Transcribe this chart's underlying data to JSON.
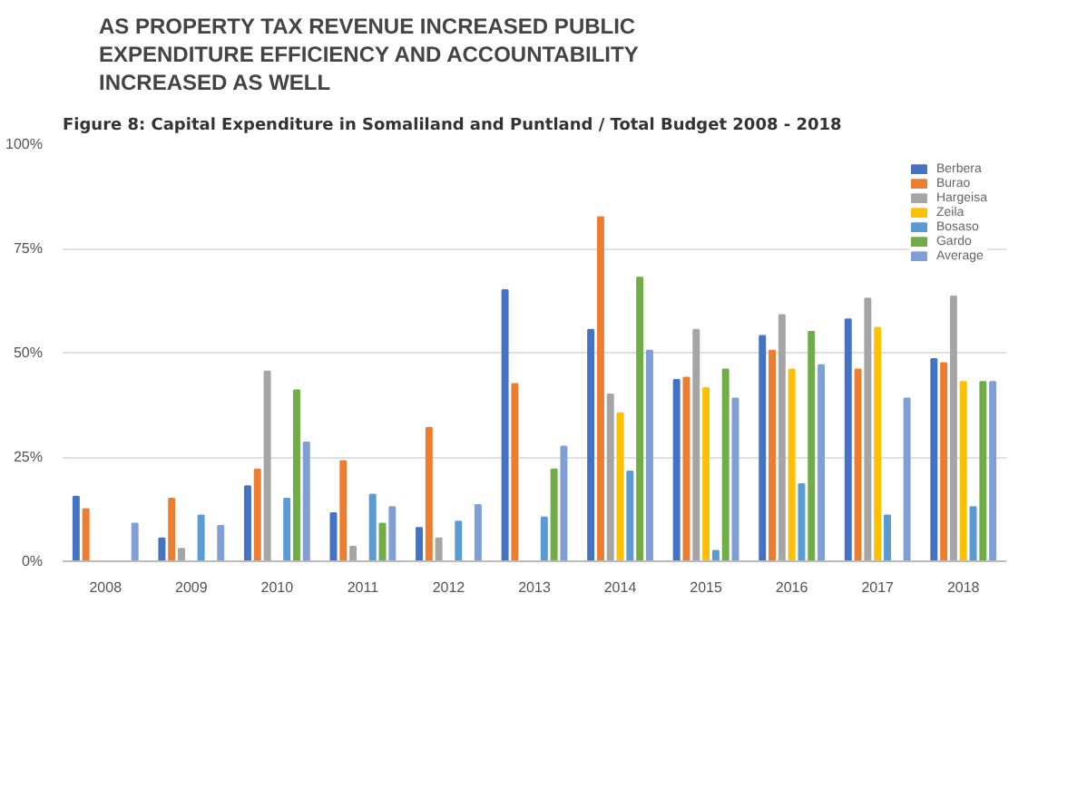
{
  "chart_data": {
    "type": "bar",
    "title": "AS PROPERTY TAX REVENUE INCREASED PUBLIC\nEXPENDITURE EFFICIENCY AND ACCOUNTABILITY\nINCREASED AS WELL",
    "subtitle": "Figure 8: Capital Expenditure in Somaliland and Puntland / Total Budget 2008 - 2018",
    "categories": [
      "2008",
      "2009",
      "2010",
      "2011",
      "2012",
      "2013",
      "2014",
      "2015",
      "2016",
      "2017",
      "2018"
    ],
    "series": [
      {
        "name": "Berbera",
        "color": "#4472c4",
        "values": [
          15.5,
          5.5,
          18,
          11.5,
          8,
          65,
          55.5,
          43.5,
          54,
          58,
          48.5
        ]
      },
      {
        "name": "Burao",
        "color": "#ed7d31",
        "values": [
          12.5,
          15,
          22,
          24,
          32,
          42.5,
          82.5,
          44,
          50.5,
          46,
          47.5
        ]
      },
      {
        "name": "Hargeisa",
        "color": "#a5a5a5",
        "values": [
          0,
          3,
          45.5,
          3.5,
          5.5,
          0,
          40,
          55.5,
          59,
          63,
          63.5
        ]
      },
      {
        "name": "Zeila",
        "color": "#ffc000",
        "values": [
          0,
          0,
          0,
          0,
          0,
          0,
          35.5,
          41.5,
          46,
          56,
          43
        ]
      },
      {
        "name": "Bosaso",
        "color": "#5b9bd5",
        "values": [
          0,
          11,
          15,
          16,
          9.5,
          10.5,
          21.5,
          2.5,
          18.5,
          11,
          13
        ]
      },
      {
        "name": "Gardo",
        "color": "#70ad47",
        "values": [
          0,
          0,
          41,
          9,
          0,
          22,
          68,
          46,
          55,
          0,
          43
        ]
      },
      {
        "name": "Average",
        "color": "#7f9fd6",
        "values": [
          9,
          8.5,
          28.5,
          13,
          13.5,
          27.5,
          50.5,
          39,
          47,
          39,
          43
        ]
      }
    ],
    "ylim": [
      0,
      100
    ],
    "yticks": [
      {
        "value": 0,
        "label": "0%"
      },
      {
        "value": 25,
        "label": "25%"
      },
      {
        "value": 50,
        "label": "50%"
      },
      {
        "value": 75,
        "label": "75%"
      },
      {
        "value": 100,
        "label": "100%"
      }
    ],
    "grid": "y",
    "legend": "top right"
  }
}
